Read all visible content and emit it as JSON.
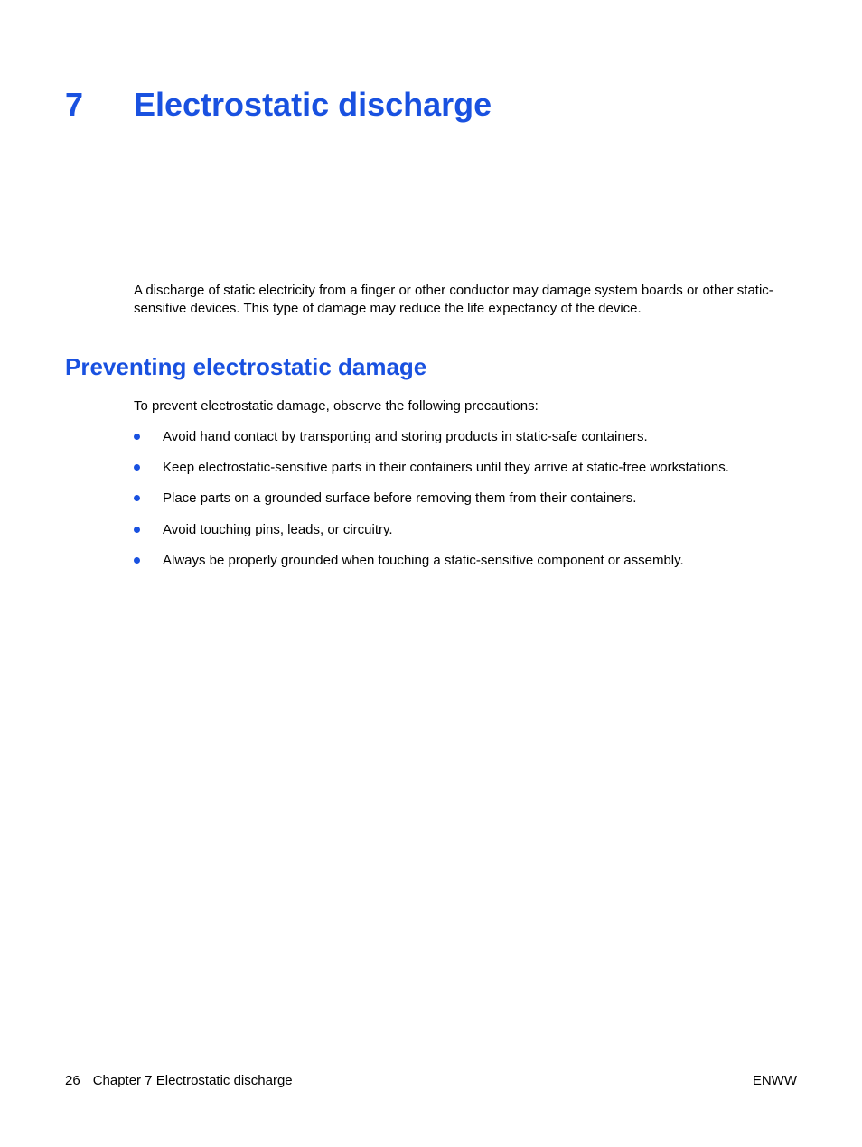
{
  "colors": {
    "heading": "#1951e0",
    "text": "#000000",
    "bullet": "#1951e0",
    "background": "#ffffff"
  },
  "typography": {
    "chapter_heading_fontsize": 36,
    "section_heading_fontsize": 26,
    "body_fontsize": 15,
    "footer_fontsize": 15,
    "heading_weight": "bold",
    "font_family": "Arial"
  },
  "chapter": {
    "number": "7",
    "title": "Electrostatic discharge"
  },
  "intro": "A discharge of static electricity from a finger or other conductor may damage system boards or other static-sensitive devices. This type of damage may reduce the life expectancy of the device.",
  "section": {
    "heading": "Preventing electrostatic damage",
    "intro": "To prevent electrostatic damage, observe the following precautions:",
    "bullets": [
      "Avoid hand contact by transporting and storing products in static-safe containers.",
      "Keep electrostatic-sensitive parts in their containers until they arrive at static-free workstations.",
      "Place parts on a grounded surface before removing them from their containers.",
      "Avoid touching pins, leads, or circuitry.",
      "Always be properly grounded when touching a static-sensitive component or assembly."
    ]
  },
  "footer": {
    "page_number": "26",
    "chapter_ref": "Chapter 7   Electrostatic discharge",
    "right": "ENWW"
  }
}
